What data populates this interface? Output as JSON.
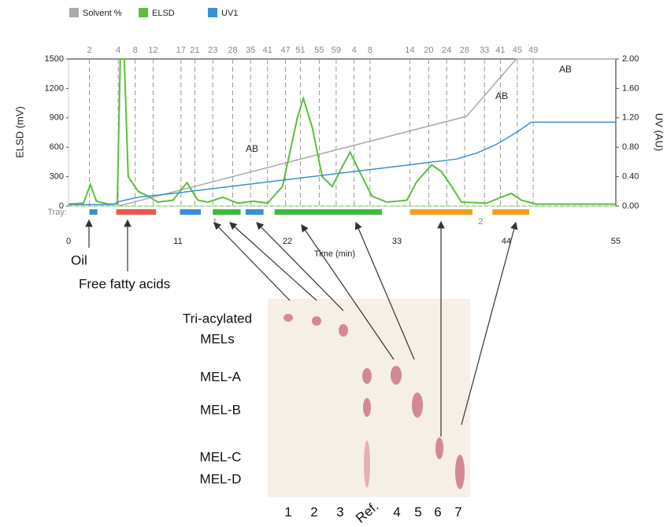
{
  "chart_data": {
    "type": "line",
    "legend": [
      "Solvent %",
      "ELSD",
      "UV1"
    ],
    "y_label": "ELSD (mV)",
    "y2_label": "UV (AU)",
    "x_label": "Time (min)",
    "xlim": [
      0,
      55
    ],
    "xticks": [
      0,
      11,
      22,
      33,
      44,
      55
    ],
    "ylim": [
      0,
      1500
    ],
    "yticks": [
      0,
      300,
      600,
      900,
      1200,
      1500
    ],
    "y2lim": [
      0,
      2
    ],
    "y2ticks": [
      {
        "value": 0,
        "label": "0.00"
      },
      {
        "value": 0.4,
        "label": "0.40"
      },
      {
        "value": 0.8,
        "label": "0.80"
      },
      {
        "value": 1.2,
        "label": "1.20"
      },
      {
        "value": 1.6,
        "label": "1.60"
      },
      {
        "value": 2,
        "label": "2.00"
      }
    ],
    "y3lim": [
      0,
      100
    ],
    "series": [
      {
        "name": "Solvent %",
        "color": "#aaaaaa",
        "axis": "y3",
        "x": [
          5,
          40,
          45,
          55
        ],
        "values": [
          0,
          61,
          100,
          100
        ]
      },
      {
        "name": "ELSD",
        "color": "#5cbf3c",
        "x": [
          0,
          1.5,
          2.2,
          2.8,
          4,
          4.9,
          5.2,
          5.6,
          6,
          7,
          8,
          9,
          10.5,
          11.9,
          13,
          14,
          15.5,
          17,
          18.6,
          20,
          21.5,
          23,
          23.6,
          24.5,
          25.5,
          26.5,
          27.5,
          28.3,
          29,
          30.5,
          32,
          34,
          35,
          36.5,
          37.5,
          38.5,
          39.5,
          42,
          44,
          44.5,
          45.5,
          47,
          55
        ],
        "values": [
          20,
          30,
          220,
          50,
          20,
          20,
          1500,
          1500,
          300,
          150,
          100,
          40,
          60,
          240,
          60,
          40,
          90,
          30,
          50,
          30,
          200,
          900,
          1100,
          800,
          300,
          200,
          400,
          550,
          400,
          100,
          40,
          60,
          250,
          420,
          350,
          200,
          40,
          30,
          110,
          130,
          60,
          20,
          20
        ]
      },
      {
        "name": "UV1",
        "color": "#3a8fd8",
        "axis": "y2",
        "x": [
          0,
          4.5,
          5,
          7,
          11,
          22,
          33,
          39,
          41,
          43,
          45,
          46.5,
          55
        ],
        "values": [
          0.02,
          0.02,
          0.06,
          0.12,
          0.18,
          0.36,
          0.54,
          0.64,
          0.72,
          0.84,
          1.0,
          1.14,
          1.14
        ]
      }
    ],
    "fractions": [
      {
        "label": 2,
        "time": 2.1
      },
      {
        "label": 4,
        "time": 5
      },
      {
        "label": 8,
        "time": 6.7
      },
      {
        "label": 12,
        "time": 8.5
      },
      {
        "label": 17,
        "time": 11.3
      },
      {
        "label": 21,
        "time": 12.7
      },
      {
        "label": 23,
        "time": 14.5
      },
      {
        "label": 28,
        "time": 16.5
      },
      {
        "label": 35,
        "time": 18.3
      },
      {
        "label": 41,
        "time": 20
      },
      {
        "label": 47,
        "time": 21.8
      },
      {
        "label": 51,
        "time": 23.3
      },
      {
        "label": 55,
        "time": 25.2
      },
      {
        "label": 59,
        "time": 26.9
      },
      {
        "label": 4,
        "time": 28.7
      },
      {
        "label": 8,
        "time": 30.3
      },
      {
        "label": 14,
        "time": 34.3
      },
      {
        "label": 20,
        "time": 36.2
      },
      {
        "label": 24,
        "time": 38
      },
      {
        "label": 28,
        "time": 39.8
      },
      {
        "label": 33,
        "time": 41.8
      },
      {
        "label": 41,
        "time": 43.4
      },
      {
        "label": 45,
        "time": 45.1
      },
      {
        "label": 49,
        "time": 46.7
      }
    ],
    "tray_label": "Tray:",
    "trays": [
      {
        "label": "1",
        "time": 14.7
      },
      {
        "label": "2",
        "time": 41.4
      }
    ],
    "tray_segments": [
      {
        "start": 2.1,
        "end": 2.9,
        "color": "#3a8fd8"
      },
      {
        "start": 4.8,
        "end": 8.8,
        "color": "#e85a4f"
      },
      {
        "start": 11.2,
        "end": 13.3,
        "color": "#3a8fd8"
      },
      {
        "start": 14.5,
        "end": 17.3,
        "color": "#3cba3c"
      },
      {
        "start": 17.8,
        "end": 19.6,
        "color": "#3a8fd8"
      },
      {
        "start": 20.7,
        "end": 31.5,
        "color": "#3cba3c"
      },
      {
        "start": 34.3,
        "end": 40.6,
        "color": "#f0a020"
      },
      {
        "start": 42.6,
        "end": 46.3,
        "color": "#f0a020"
      }
    ],
    "annotations": [
      "AB",
      "AB",
      "AB",
      "Oil",
      "Free fatty acids"
    ]
  },
  "tlc": {
    "compounds": [
      "Tri-acylated",
      "MELs",
      "MEL-A",
      "MEL-B",
      "MEL-C",
      "MEL-D"
    ],
    "lanes": [
      "1",
      "2",
      "3",
      "Ref.",
      "4",
      "5",
      "6",
      "7"
    ]
  }
}
